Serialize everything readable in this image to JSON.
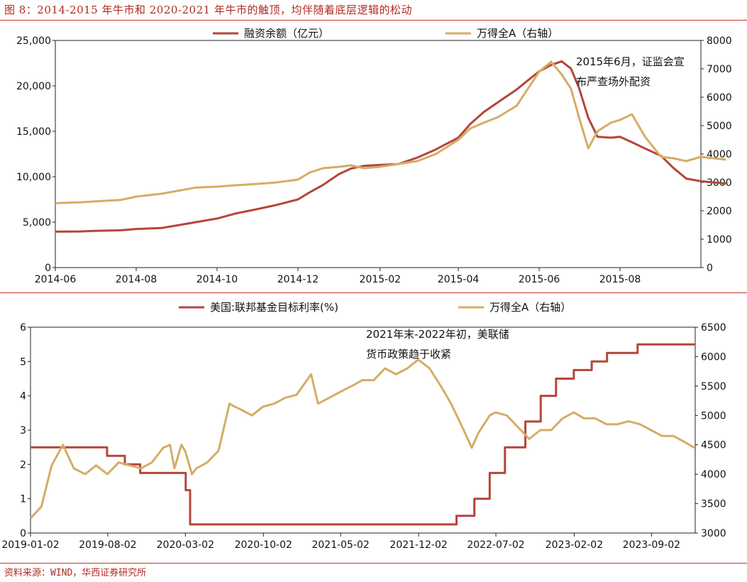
{
  "figure": {
    "title": "图 8：2014-2015 年牛市和 2020-2021 年牛市的触顶，均伴随着底层逻辑的松动",
    "source": "资料来源：WIND，华西证券研究所"
  },
  "colors": {
    "series_red": "#b5453a",
    "series_gold": "#d4ad65",
    "accent": "#c0392b"
  },
  "chart_data": [
    {
      "type": "line",
      "x_ticks": [
        "2014-06",
        "2014-08",
        "2014-10",
        "2014-12",
        "2015-02",
        "2015-04",
        "2015-06",
        "2015-08"
      ],
      "x_range": [
        "2014-06",
        "2015-10"
      ],
      "ylim": [
        0,
        25000
      ],
      "y_ticks": [
        "0",
        "5,000",
        "10,000",
        "15,000",
        "20,000",
        "25,000"
      ],
      "ylim_right": [
        0,
        8000
      ],
      "y_ticks_right": [
        "0",
        "1000",
        "2000",
        "3000",
        "4000",
        "5000",
        "6000",
        "7000",
        "8000"
      ],
      "legend_position": "top",
      "annotation": [
        "2015年6月，证监会宣",
        "布严查场外配资"
      ],
      "series": [
        {
          "name": "融资余额（亿元）",
          "axis": "left",
          "color": "#b5453a",
          "points": [
            [
              "2014-06-01",
              3950
            ],
            [
              "2014-06-20",
              3980
            ],
            [
              "2014-07-01",
              4050
            ],
            [
              "2014-07-20",
              4100
            ],
            [
              "2014-08-01",
              4250
            ],
            [
              "2014-08-20",
              4350
            ],
            [
              "2014-09-01",
              4650
            ],
            [
              "2014-09-15",
              5000
            ],
            [
              "2014-10-01",
              5400
            ],
            [
              "2014-10-15",
              5950
            ],
            [
              "2014-11-01",
              6450
            ],
            [
              "2014-11-15",
              6900
            ],
            [
              "2014-12-01",
              7500
            ],
            [
              "2014-12-10",
              8300
            ],
            [
              "2014-12-20",
              9100
            ],
            [
              "2015-01-01",
              10300
            ],
            [
              "2015-01-10",
              10900
            ],
            [
              "2015-01-20",
              11200
            ],
            [
              "2015-02-01",
              11300
            ],
            [
              "2015-02-15",
              11400
            ],
            [
              "2015-03-01",
              12100
            ],
            [
              "2015-03-15",
              13000
            ],
            [
              "2015-04-01",
              14300
            ],
            [
              "2015-04-10",
              15800
            ],
            [
              "2015-04-20",
              17100
            ],
            [
              "2015-05-01",
              18200
            ],
            [
              "2015-05-15",
              19600
            ],
            [
              "2015-06-01",
              21600
            ],
            [
              "2015-06-10",
              22300
            ],
            [
              "2015-06-18",
              22700
            ],
            [
              "2015-06-25",
              21900
            ],
            [
              "2015-07-01",
              19800
            ],
            [
              "2015-07-08",
              16500
            ],
            [
              "2015-07-15",
              14400
            ],
            [
              "2015-07-25",
              14300
            ],
            [
              "2015-08-01",
              14400
            ],
            [
              "2015-08-10",
              13800
            ],
            [
              "2015-08-20",
              13100
            ],
            [
              "2015-09-01",
              12300
            ],
            [
              "2015-09-10",
              11000
            ],
            [
              "2015-09-20",
              9800
            ],
            [
              "2015-10-01",
              9500
            ],
            [
              "2015-10-20",
              9250
            ]
          ]
        },
        {
          "name": "万得全A（右轴）",
          "axis": "right",
          "color": "#d4ad65",
          "points": [
            [
              "2014-06-01",
              2270
            ],
            [
              "2014-06-20",
              2300
            ],
            [
              "2014-07-01",
              2330
            ],
            [
              "2014-07-20",
              2380
            ],
            [
              "2014-08-01",
              2500
            ],
            [
              "2014-08-20",
              2600
            ],
            [
              "2014-09-01",
              2700
            ],
            [
              "2014-09-15",
              2820
            ],
            [
              "2014-10-01",
              2850
            ],
            [
              "2014-10-15",
              2900
            ],
            [
              "2014-11-01",
              2950
            ],
            [
              "2014-11-15",
              3000
            ],
            [
              "2014-12-01",
              3100
            ],
            [
              "2014-12-10",
              3350
            ],
            [
              "2014-12-20",
              3500
            ],
            [
              "2015-01-01",
              3550
            ],
            [
              "2015-01-10",
              3600
            ],
            [
              "2015-01-20",
              3500
            ],
            [
              "2015-02-01",
              3550
            ],
            [
              "2015-02-15",
              3650
            ],
            [
              "2015-03-01",
              3750
            ],
            [
              "2015-03-15",
              4000
            ],
            [
              "2015-04-01",
              4500
            ],
            [
              "2015-04-10",
              4900
            ],
            [
              "2015-04-20",
              5100
            ],
            [
              "2015-05-01",
              5300
            ],
            [
              "2015-05-15",
              5700
            ],
            [
              "2015-06-01",
              6900
            ],
            [
              "2015-06-10",
              7250
            ],
            [
              "2015-06-18",
              6800
            ],
            [
              "2015-06-25",
              6300
            ],
            [
              "2015-07-01",
              5300
            ],
            [
              "2015-07-08",
              4200
            ],
            [
              "2015-07-15",
              4800
            ],
            [
              "2015-07-25",
              5100
            ],
            [
              "2015-08-01",
              5200
            ],
            [
              "2015-08-10",
              5400
            ],
            [
              "2015-08-20",
              4600
            ],
            [
              "2015-09-01",
              3900
            ],
            [
              "2015-09-10",
              3850
            ],
            [
              "2015-09-20",
              3750
            ],
            [
              "2015-10-01",
              3900
            ],
            [
              "2015-10-20",
              3800
            ]
          ]
        }
      ]
    },
    {
      "type": "line",
      "x_ticks": [
        "2019-01-02",
        "2019-08-02",
        "2020-03-02",
        "2020-10-02",
        "2021-05-02",
        "2021-12-02",
        "2022-07-02",
        "2023-02-02",
        "2023-09-02"
      ],
      "x_range": [
        "2019-01-02",
        "2023-12-31"
      ],
      "ylim": [
        0,
        6
      ],
      "y_ticks": [
        "0",
        "1",
        "2",
        "3",
        "4",
        "5",
        "6"
      ],
      "ylim_right": [
        3000,
        6500
      ],
      "y_ticks_right": [
        "3000",
        "3500",
        "4000",
        "4500",
        "5000",
        "5500",
        "6000",
        "6500"
      ],
      "legend_position": "top",
      "annotation": [
        "2021年末-2022年初，美联储",
        "货币政策趋于收紧"
      ],
      "series": [
        {
          "name": "美国:联邦基金目标利率(%)",
          "axis": "left",
          "color": "#b5453a",
          "step": true,
          "points": [
            [
              "2019-01-02",
              2.5
            ],
            [
              "2019-07-31",
              2.25
            ],
            [
              "2019-09-18",
              2.0
            ],
            [
              "2019-10-30",
              1.75
            ],
            [
              "2020-03-03",
              1.25
            ],
            [
              "2020-03-15",
              0.25
            ],
            [
              "2022-03-16",
              0.5
            ],
            [
              "2022-05-04",
              1.0
            ],
            [
              "2022-06-15",
              1.75
            ],
            [
              "2022-07-27",
              2.5
            ],
            [
              "2022-09-21",
              3.25
            ],
            [
              "2022-11-02",
              4.0
            ],
            [
              "2022-12-14",
              4.5
            ],
            [
              "2023-02-01",
              4.75
            ],
            [
              "2023-03-22",
              5.0
            ],
            [
              "2023-05-03",
              5.25
            ],
            [
              "2023-07-26",
              5.5
            ],
            [
              "2023-12-31",
              5.5
            ]
          ]
        },
        {
          "name": "万得全A（右轴）",
          "axis": "right",
          "color": "#d4ad65",
          "points": [
            [
              "2019-01-02",
              3250
            ],
            [
              "2019-02-01",
              3450
            ],
            [
              "2019-03-01",
              4150
            ],
            [
              "2019-04-01",
              4500
            ],
            [
              "2019-05-01",
              4100
            ],
            [
              "2019-06-01",
              4000
            ],
            [
              "2019-07-01",
              4150
            ],
            [
              "2019-08-01",
              4000
            ],
            [
              "2019-09-01",
              4200
            ],
            [
              "2019-10-01",
              4150
            ],
            [
              "2019-11-01",
              4100
            ],
            [
              "2019-12-01",
              4200
            ],
            [
              "2020-01-01",
              4450
            ],
            [
              "2020-01-20",
              4500
            ],
            [
              "2020-02-01",
              4100
            ],
            [
              "2020-02-20",
              4500
            ],
            [
              "2020-03-01",
              4400
            ],
            [
              "2020-03-20",
              4000
            ],
            [
              "2020-04-01",
              4100
            ],
            [
              "2020-05-01",
              4200
            ],
            [
              "2020-06-01",
              4400
            ],
            [
              "2020-07-01",
              5200
            ],
            [
              "2020-07-15",
              5150
            ],
            [
              "2020-08-01",
              5100
            ],
            [
              "2020-09-01",
              5000
            ],
            [
              "2020-10-01",
              5150
            ],
            [
              "2020-11-01",
              5200
            ],
            [
              "2020-12-01",
              5300
            ],
            [
              "2021-01-01",
              5350
            ],
            [
              "2021-02-10",
              5700
            ],
            [
              "2021-03-01",
              5200
            ],
            [
              "2021-04-01",
              5300
            ],
            [
              "2021-05-01",
              5400
            ],
            [
              "2021-06-01",
              5500
            ],
            [
              "2021-07-01",
              5600
            ],
            [
              "2021-08-01",
              5600
            ],
            [
              "2021-09-01",
              5800
            ],
            [
              "2021-10-01",
              5700
            ],
            [
              "2021-11-01",
              5800
            ],
            [
              "2021-12-01",
              5950
            ],
            [
              "2022-01-01",
              5800
            ],
            [
              "2022-02-01",
              5500
            ],
            [
              "2022-03-01",
              5200
            ],
            [
              "2022-04-01",
              4800
            ],
            [
              "2022-04-27",
              4450
            ],
            [
              "2022-05-15",
              4700
            ],
            [
              "2022-06-15",
              5000
            ],
            [
              "2022-07-01",
              5050
            ],
            [
              "2022-08-01",
              5000
            ],
            [
              "2022-09-01",
              4800
            ],
            [
              "2022-10-01",
              4600
            ],
            [
              "2022-11-01",
              4750
            ],
            [
              "2022-12-01",
              4750
            ],
            [
              "2023-01-01",
              4950
            ],
            [
              "2023-02-01",
              5050
            ],
            [
              "2023-03-01",
              4950
            ],
            [
              "2023-04-01",
              4950
            ],
            [
              "2023-05-01",
              4850
            ],
            [
              "2023-06-01",
              4850
            ],
            [
              "2023-07-01",
              4900
            ],
            [
              "2023-08-01",
              4850
            ],
            [
              "2023-09-01",
              4750
            ],
            [
              "2023-10-01",
              4650
            ],
            [
              "2023-11-01",
              4650
            ],
            [
              "2023-12-01",
              4550
            ],
            [
              "2023-12-29",
              4450
            ]
          ]
        }
      ]
    }
  ]
}
